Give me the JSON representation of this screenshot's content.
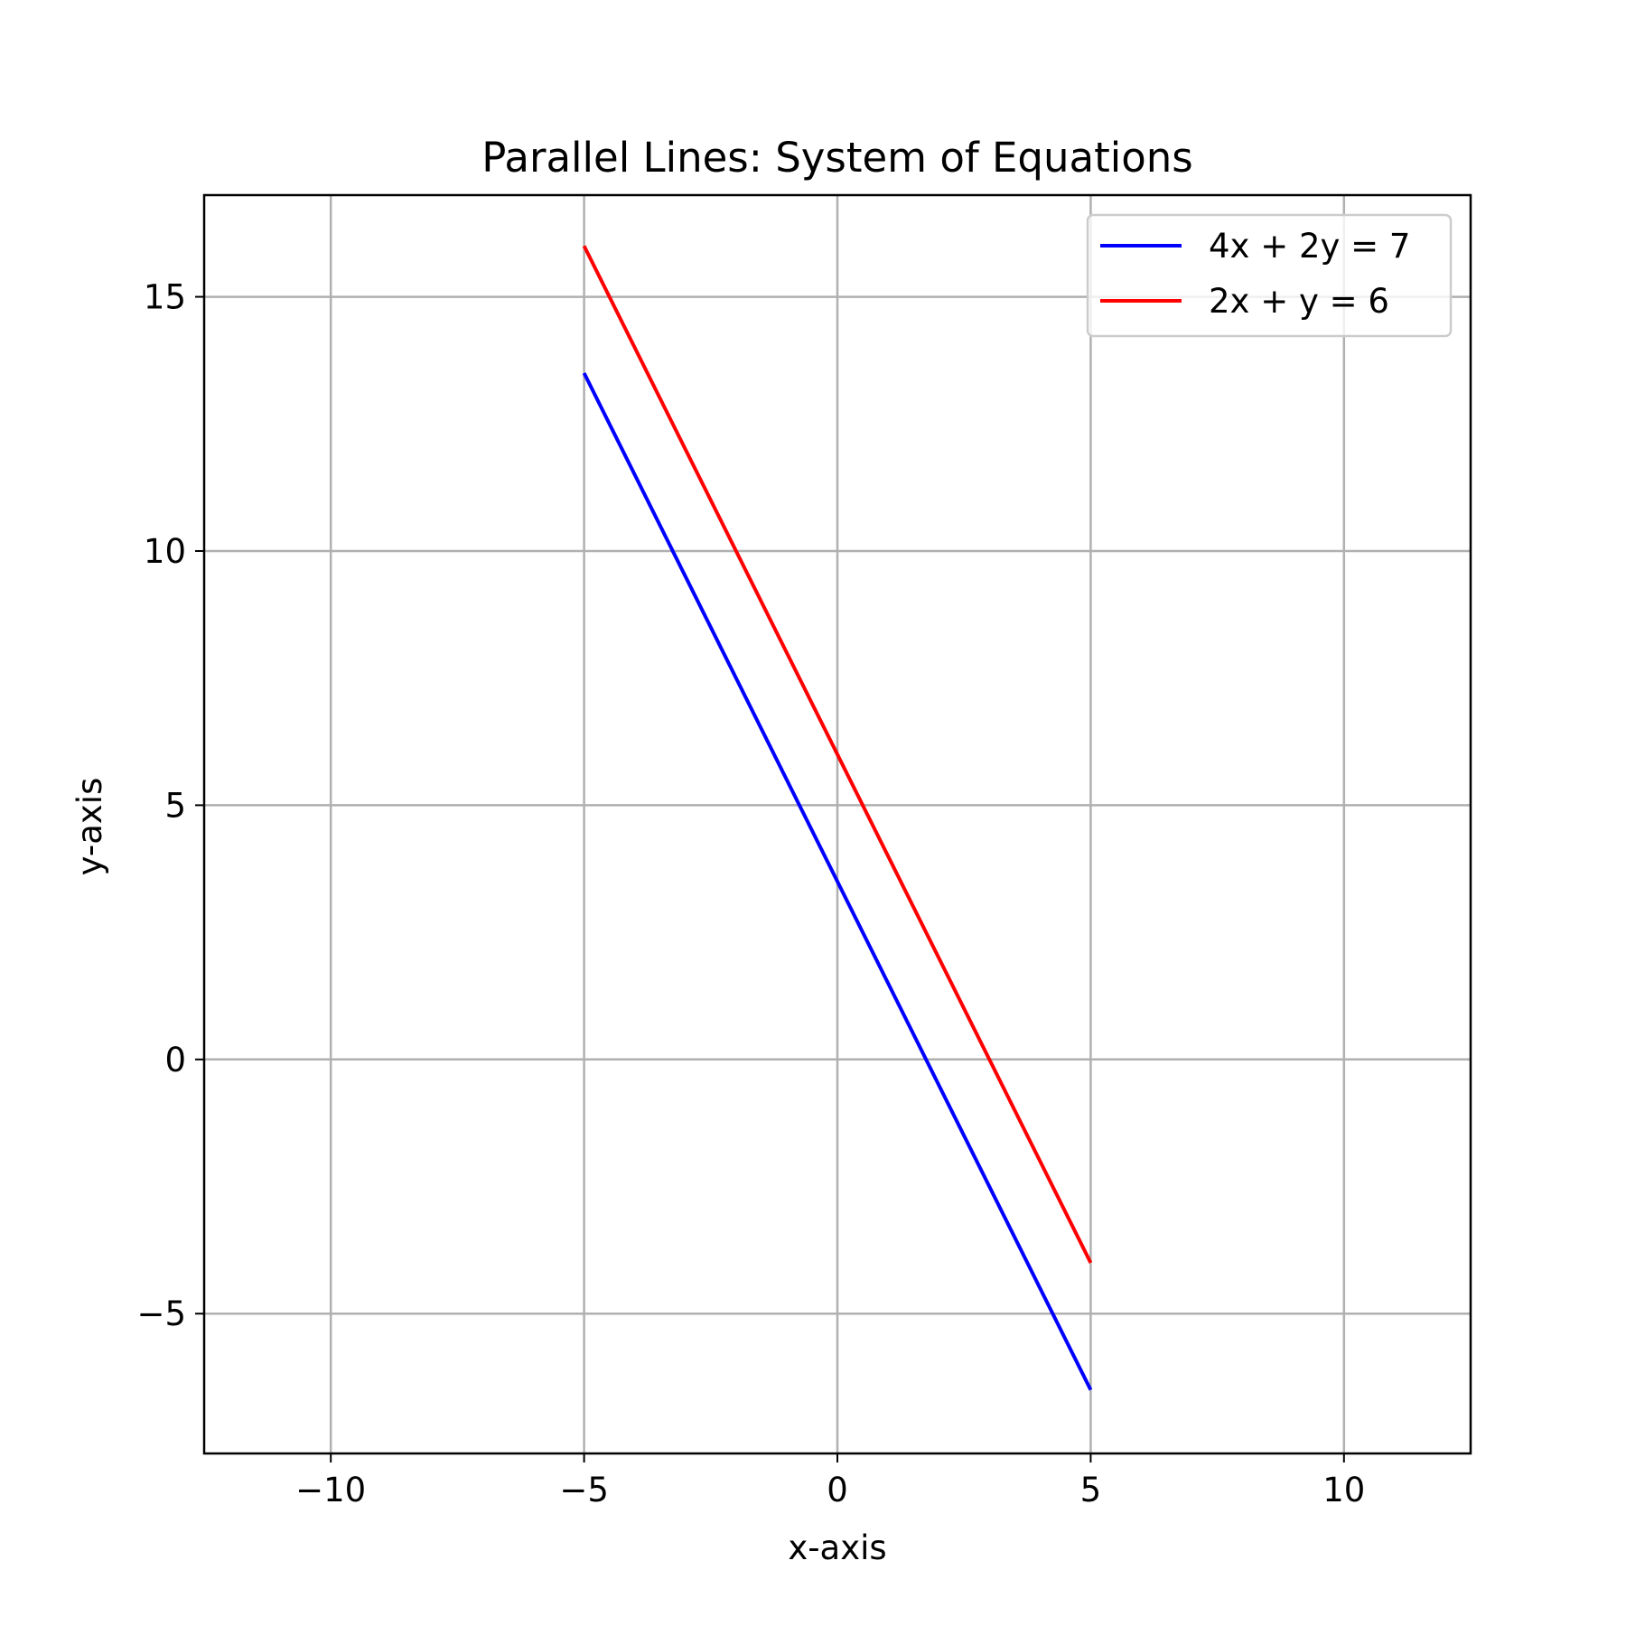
{
  "chart_data": {
    "type": "line",
    "title": "Parallel Lines: System of Equations",
    "xlabel": "x-axis",
    "ylabel": "y-axis",
    "xlim": [
      -12.5,
      12.5
    ],
    "ylim": [
      -7.75,
      17
    ],
    "xticks": [
      -10,
      -5,
      0,
      5,
      10
    ],
    "yticks": [
      -5,
      0,
      5,
      10,
      15
    ],
    "xtick_labels": [
      "−10",
      "−5",
      "0",
      "5",
      "10"
    ],
    "ytick_labels": [
      "−5",
      "0",
      "5",
      "10",
      "15"
    ],
    "grid": true,
    "legend_position": "top-right",
    "series": [
      {
        "name": "4x + 2y = 7",
        "color": "#0000ff",
        "x": [
          -5,
          5
        ],
        "y": [
          13.5,
          -6.5
        ]
      },
      {
        "name": "2x + y = 6",
        "color": "#ff0000",
        "x": [
          -5,
          5
        ],
        "y": [
          16,
          -4
        ]
      }
    ]
  }
}
